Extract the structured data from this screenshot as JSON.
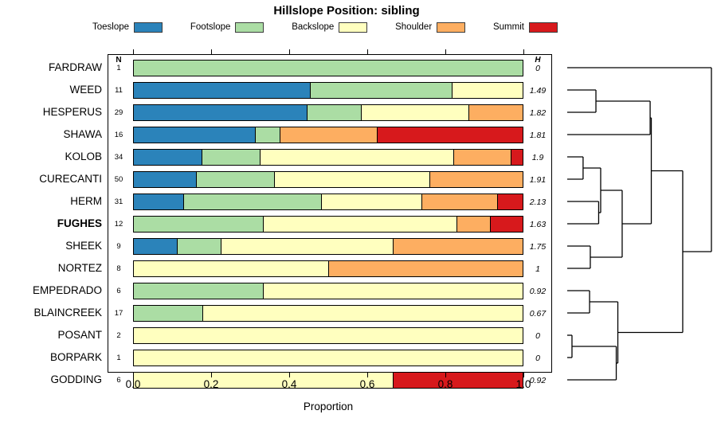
{
  "chart_data": {
    "type": "bar",
    "orientation": "horizontal-stacked-with-dendrogram",
    "title": "Hillslope Position: sibling",
    "xlabel": "Proportion",
    "xlim": [
      0,
      1
    ],
    "x_ticks": [
      "0.0",
      "0.2",
      "0.4",
      "0.6",
      "0.8",
      "1.0"
    ],
    "left_header": "N",
    "right_header": "H",
    "categories": [
      "Toeslope",
      "Footslope",
      "Backslope",
      "Shoulder",
      "Summit"
    ],
    "colors": {
      "Toeslope": "#2B83BA",
      "Footslope": "#ABDDA4",
      "Backslope": "#FFFFBF",
      "Shoulder": "#FDAE61",
      "Summit": "#D7191C"
    },
    "legend": [
      {
        "label": "Toeslope",
        "color": "#2B83BA"
      },
      {
        "label": "Footslope",
        "color": "#ABDDA4"
      },
      {
        "label": "Backslope",
        "color": "#FFFFBF"
      },
      {
        "label": "Shoulder",
        "color": "#FDAE61"
      },
      {
        "label": "Summit",
        "color": "#D7191C"
      }
    ],
    "rows": [
      {
        "name": "FARDRAW",
        "n": "1",
        "h": "0",
        "bold": false,
        "segments": [
          [
            "Footslope",
            1.0
          ]
        ]
      },
      {
        "name": "WEED",
        "n": "11",
        "h": "1.49",
        "bold": false,
        "segments": [
          [
            "Toeslope",
            0.4545
          ],
          [
            "Footslope",
            0.3636
          ],
          [
            "Backslope",
            0.1819
          ]
        ]
      },
      {
        "name": "HESPERUS",
        "n": "29",
        "h": "1.82",
        "bold": false,
        "segments": [
          [
            "Toeslope",
            0.4483
          ],
          [
            "Footslope",
            0.1379
          ],
          [
            "Backslope",
            0.2759
          ],
          [
            "Shoulder",
            0.1379
          ]
        ]
      },
      {
        "name": "SHAWA",
        "n": "16",
        "h": "1.81",
        "bold": false,
        "segments": [
          [
            "Toeslope",
            0.3125
          ],
          [
            "Footslope",
            0.0625
          ],
          [
            "Shoulder",
            0.25
          ],
          [
            "Summit",
            0.375
          ]
        ]
      },
      {
        "name": "KOLOB",
        "n": "34",
        "h": "1.9",
        "bold": false,
        "segments": [
          [
            "Toeslope",
            0.1765
          ],
          [
            "Footslope",
            0.1471
          ],
          [
            "Backslope",
            0.5
          ],
          [
            "Shoulder",
            0.1471
          ],
          [
            "Summit",
            0.0294
          ]
        ]
      },
      {
        "name": "CURECANTI",
        "n": "50",
        "h": "1.91",
        "bold": false,
        "segments": [
          [
            "Toeslope",
            0.16
          ],
          [
            "Footslope",
            0.2
          ],
          [
            "Backslope",
            0.4
          ],
          [
            "Shoulder",
            0.24
          ]
        ]
      },
      {
        "name": "HERM",
        "n": "31",
        "h": "2.13",
        "bold": false,
        "segments": [
          [
            "Toeslope",
            0.129
          ],
          [
            "Footslope",
            0.3548
          ],
          [
            "Backslope",
            0.2581
          ],
          [
            "Shoulder",
            0.1935
          ],
          [
            "Summit",
            0.0645
          ]
        ]
      },
      {
        "name": "FUGHES",
        "n": "12",
        "h": "1.63",
        "bold": true,
        "segments": [
          [
            "Footslope",
            0.3333
          ],
          [
            "Backslope",
            0.5
          ],
          [
            "Shoulder",
            0.0833
          ],
          [
            "Summit",
            0.0833
          ]
        ]
      },
      {
        "name": "SHEEK",
        "n": "9",
        "h": "1.75",
        "bold": false,
        "segments": [
          [
            "Toeslope",
            0.1111
          ],
          [
            "Footslope",
            0.1111
          ],
          [
            "Backslope",
            0.4444
          ],
          [
            "Shoulder",
            0.3333
          ]
        ]
      },
      {
        "name": "NORTEZ",
        "n": "8",
        "h": "1",
        "bold": false,
        "segments": [
          [
            "Backslope",
            0.5
          ],
          [
            "Shoulder",
            0.5
          ]
        ]
      },
      {
        "name": "EMPEDRADO",
        "n": "6",
        "h": "0.92",
        "bold": false,
        "segments": [
          [
            "Footslope",
            0.3333
          ],
          [
            "Backslope",
            0.6667
          ]
        ]
      },
      {
        "name": "BLAINCREEK",
        "n": "17",
        "h": "0.67",
        "bold": false,
        "segments": [
          [
            "Footslope",
            0.1765
          ],
          [
            "Backslope",
            0.8235
          ]
        ]
      },
      {
        "name": "POSANT",
        "n": "2",
        "h": "0",
        "bold": false,
        "segments": [
          [
            "Backslope",
            1.0
          ]
        ]
      },
      {
        "name": "BORPARK",
        "n": "1",
        "h": "0",
        "bold": false,
        "segments": [
          [
            "Backslope",
            1.0
          ]
        ]
      },
      {
        "name": "GODDING",
        "n": "6",
        "h": "0.92",
        "bold": false,
        "segments": [
          [
            "Backslope",
            0.6667
          ],
          [
            "Summit",
            0.3333
          ]
        ]
      }
    ],
    "dendrogram": {
      "leaves": [
        "FARDRAW",
        "WEED",
        "HESPERUS",
        "SHAWA",
        "KOLOB",
        "CURECANTI",
        "HERM",
        "FUGHES",
        "SHEEK",
        "NORTEZ",
        "EMPEDRADO",
        "BLAINCREEK",
        "POSANT",
        "BORPARK",
        "GODDING"
      ],
      "merges": [
        {
          "id": "m1",
          "a": "POSANT",
          "b": "BORPARK",
          "h": 0.033
        },
        {
          "id": "m2",
          "a": "KOLOB",
          "b": "CURECANTI",
          "h": 0.11
        },
        {
          "id": "m3",
          "a": "EMPEDRADO",
          "b": "BLAINCREEK",
          "h": 0.155
        },
        {
          "id": "m4",
          "a": "SHEEK",
          "b": "NORTEZ",
          "h": 0.16
        },
        {
          "id": "m5",
          "a": "WEED",
          "b": "HESPERUS",
          "h": 0.199
        },
        {
          "id": "m6",
          "a": "HERM",
          "b": "FUGHES",
          "h": 0.218
        },
        {
          "id": "m7",
          "a": "m2",
          "b": "m6",
          "h": 0.232
        },
        {
          "id": "m8",
          "a": "m1",
          "b": "GODDING",
          "h": 0.34
        },
        {
          "id": "m9",
          "a": "m3",
          "b": "m8",
          "h": 0.351
        },
        {
          "id": "m10",
          "a": "m7",
          "b": "m4",
          "h": 0.381
        },
        {
          "id": "m11",
          "a": "m5",
          "b": "SHAWA",
          "h": 0.575
        },
        {
          "id": "m12",
          "a": "m11",
          "b": "m10",
          "h": 0.583
        },
        {
          "id": "m13",
          "a": "m12",
          "b": "m9",
          "h": 0.801
        },
        {
          "id": "m14",
          "a": "FARDRAW",
          "b": "m13",
          "h": 1.0
        }
      ]
    }
  }
}
